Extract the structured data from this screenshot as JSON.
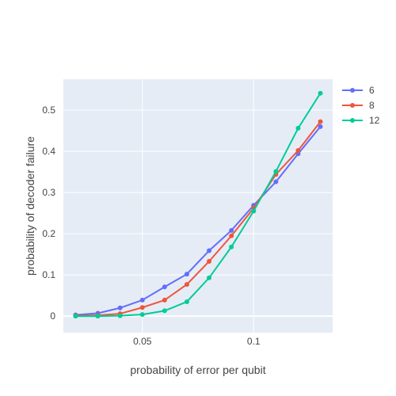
{
  "chart_data": {
    "type": "line",
    "title": "",
    "xlabel": "probability of error per qubit",
    "ylabel": "probability of decoder failure",
    "xlim": [
      0.0145,
      0.1355
    ],
    "ylim": [
      -0.04,
      0.575
    ],
    "x_ticks": [
      0.05,
      0.1
    ],
    "x_tick_labels": [
      "0.05",
      "0.1"
    ],
    "y_ticks": [
      0,
      0.1,
      0.2,
      0.3,
      0.4,
      0.5
    ],
    "y_tick_labels": [
      "0",
      "0.1",
      "0.2",
      "0.3",
      "0.4",
      "0.5"
    ],
    "grid": true,
    "legend_position": "top-right",
    "background_color": "#e5ecf6",
    "x": [
      0.02,
      0.03,
      0.04,
      0.05,
      0.06,
      0.07,
      0.08,
      0.09,
      0.1,
      0.11,
      0.12,
      0.13
    ],
    "series": [
      {
        "name": "6",
        "color": "#636efa",
        "values": [
          0.003,
          0.007,
          0.02,
          0.039,
          0.071,
          0.102,
          0.159,
          0.208,
          0.269,
          0.326,
          0.394,
          0.46
        ]
      },
      {
        "name": "8",
        "color": "#ef553b",
        "values": [
          0.001,
          0.002,
          0.006,
          0.021,
          0.039,
          0.077,
          0.133,
          0.195,
          0.262,
          0.344,
          0.402,
          0.472
        ]
      },
      {
        "name": "12",
        "color": "#00cc96",
        "values": [
          0.0,
          0.0,
          0.001,
          0.004,
          0.013,
          0.035,
          0.093,
          0.168,
          0.255,
          0.351,
          0.456,
          0.541
        ]
      }
    ]
  }
}
